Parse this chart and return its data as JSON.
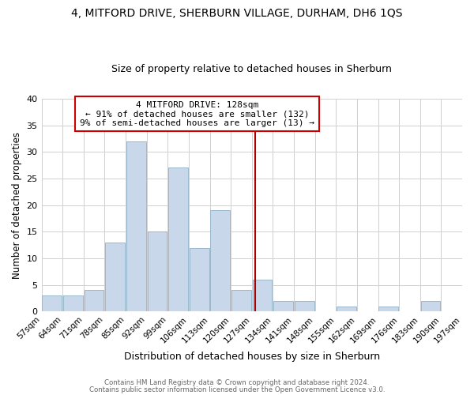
{
  "title": "4, MITFORD DRIVE, SHERBURN VILLAGE, DURHAM, DH6 1QS",
  "subtitle": "Size of property relative to detached houses in Sherburn",
  "xlabel": "Distribution of detached houses by size in Sherburn",
  "ylabel": "Number of detached properties",
  "bar_color": "#c8d8ea",
  "bar_edgecolor": "#9ab8cc",
  "bin_edges": [
    57,
    64,
    71,
    78,
    85,
    92,
    99,
    106,
    113,
    120,
    127,
    134,
    141,
    148,
    155,
    162,
    169,
    176,
    183,
    190,
    197
  ],
  "bar_heights": [
    3,
    3,
    4,
    13,
    32,
    15,
    27,
    12,
    19,
    4,
    6,
    2,
    2,
    0,
    1,
    0,
    1,
    0,
    2,
    0
  ],
  "vline_x": 128,
  "vline_color": "#aa0000",
  "annotation_title": "4 MITFORD DRIVE: 128sqm",
  "annotation_line1": "← 91% of detached houses are smaller (132)",
  "annotation_line2": "9% of semi-detached houses are larger (13) →",
  "ylim": [
    0,
    40
  ],
  "yticks": [
    0,
    5,
    10,
    15,
    20,
    25,
    30,
    35,
    40
  ],
  "footer1": "Contains HM Land Registry data © Crown copyright and database right 2024.",
  "footer2": "Contains public sector information licensed under the Open Government Licence v3.0."
}
